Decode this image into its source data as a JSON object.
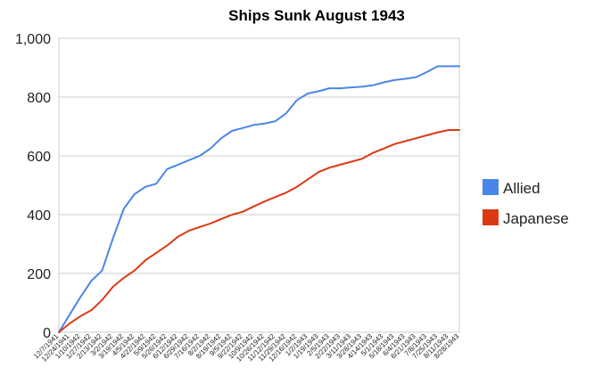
{
  "chart_data": {
    "type": "line",
    "title": "Ships Sunk August 1943",
    "xlabel": "",
    "ylabel": "",
    "ylim": [
      0,
      1000
    ],
    "yticks": [
      "0",
      "200",
      "400",
      "600",
      "800",
      "1,000"
    ],
    "x": [
      "12/7/1941",
      "12/24/1941",
      "1/10/1942",
      "1/27/1942",
      "2/13/1942",
      "3/2/1942",
      "3/19/1942",
      "4/5/1942",
      "4/22/1942",
      "5/9/1942",
      "5/26/1942",
      "6/12/1942",
      "6/29/1942",
      "7/16/1942",
      "8/2/1942",
      "8/19/1942",
      "9/5/1942",
      "9/22/1942",
      "10/9/1942",
      "10/26/1942",
      "11/12/1942",
      "11/29/1942",
      "12/16/1942",
      "1/2/1943",
      "1/19/1943",
      "2/5/1943",
      "2/22/1943",
      "3/11/1943",
      "3/28/1943",
      "4/14/1943",
      "5/1/1943",
      "5/18/1943",
      "6/4/1943",
      "6/21/1943",
      "7/8/1943",
      "7/25/1943",
      "8/11/1943",
      "8/28/1943"
    ],
    "grid": true,
    "legend_position": "right",
    "series": [
      {
        "name": "Allied",
        "color": "#4a86e8",
        "values": [
          0,
          60,
          120,
          175,
          210,
          320,
          420,
          470,
          495,
          505,
          555,
          570,
          585,
          600,
          625,
          660,
          685,
          695,
          705,
          710,
          718,
          745,
          790,
          812,
          820,
          830,
          830,
          833,
          835,
          840,
          850,
          858,
          862,
          868,
          885,
          905,
          905,
          905
        ]
      },
      {
        "name": "Japanese",
        "color": "#dc3912",
        "values": [
          0,
          30,
          55,
          75,
          110,
          155,
          185,
          210,
          245,
          270,
          295,
          325,
          345,
          358,
          370,
          385,
          400,
          410,
          428,
          445,
          460,
          475,
          495,
          520,
          545,
          560,
          570,
          580,
          590,
          610,
          625,
          640,
          650,
          660,
          670,
          680,
          688,
          688
        ]
      }
    ]
  }
}
